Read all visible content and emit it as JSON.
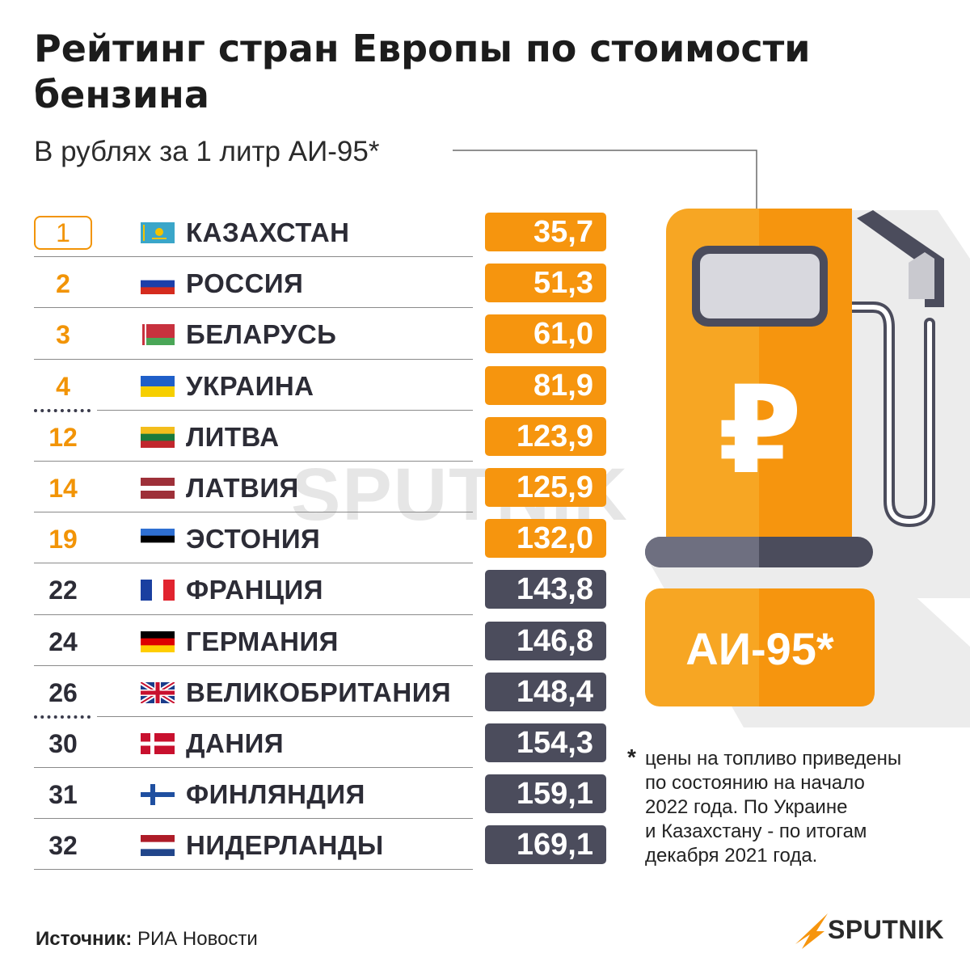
{
  "title": "Рейтинг стран Европы по стоимости бензина",
  "subtitle": "В рублях за 1 литр АИ-95*",
  "accent_color": "#f6950e",
  "dark_color": "#4b4c5c",
  "rows": [
    {
      "rank": "1",
      "country": "КАЗАХСТАН",
      "price": "35,7",
      "flag": "kazakhstan"
    },
    {
      "rank": "2",
      "country": "РОССИЯ",
      "price": "51,3",
      "flag": "russia"
    },
    {
      "rank": "3",
      "country": "БЕЛАРУСЬ",
      "price": "61,0",
      "flag": "belarus"
    },
    {
      "rank": "4",
      "country": "УКРАИНА",
      "price": "81,9",
      "flag": "ukraine"
    },
    {
      "rank": "12",
      "country": "ЛИТВА",
      "price": "123,9",
      "flag": "lithuania"
    },
    {
      "rank": "14",
      "country": "ЛАТВИЯ",
      "price": "125,9",
      "flag": "latvia"
    },
    {
      "rank": "19",
      "country": "ЭСТОНИЯ",
      "price": "132,0",
      "flag": "estonia"
    },
    {
      "rank": "22",
      "country": "ФРАНЦИЯ",
      "price": "143,8",
      "flag": "france"
    },
    {
      "rank": "24",
      "country": "ГЕРМАНИЯ",
      "price": "146,8",
      "flag": "germany"
    },
    {
      "rank": "26",
      "country": "ВЕЛИКОБРИТАНИЯ",
      "price": "148,4",
      "flag": "uk"
    },
    {
      "rank": "30",
      "country": "ДАНИЯ",
      "price": "154,3",
      "flag": "denmark"
    },
    {
      "rank": "31",
      "country": "ФИНЛЯНДИЯ",
      "price": "159,1",
      "flag": "finland"
    },
    {
      "rank": "32",
      "country": "НИДЕРЛАНДЫ",
      "price": "169,1",
      "flag": "netherlands"
    }
  ],
  "pump": {
    "currency_symbol": "₽",
    "fuel_label": "АИ-95*",
    "icon": "fuel-pump-icon"
  },
  "footnote": {
    "star": "*",
    "lines": [
      "цены на топливо приведены",
      "по состоянию на начало",
      "2022 года. По Украине",
      "и Казахстану - по итогам",
      "декабря 2021 года."
    ]
  },
  "source": {
    "label": "Источник:",
    "value": "РИА Новости"
  },
  "brand": {
    "logo_text": "SPUTNIK",
    "watermark_text": "SPUTNIK"
  }
}
